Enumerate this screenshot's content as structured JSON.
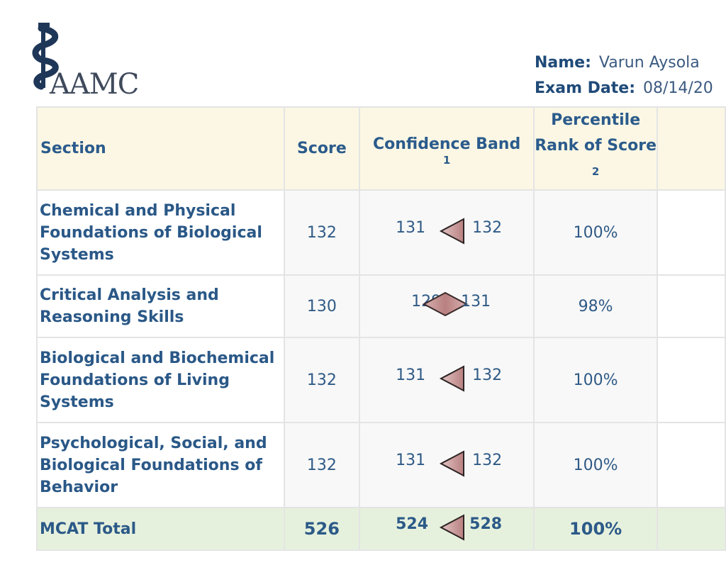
{
  "header": {
    "logo_text": "AAMC",
    "name_label": "Name:",
    "name_value": "Varun Aysola",
    "exam_date_label": "Exam Date:",
    "exam_date_value": "08/14/20"
  },
  "table": {
    "columns": {
      "section": "Section",
      "score": "Score",
      "confidence_band": "Confidence Band",
      "confidence_band_note": "1",
      "percentile": "Percentile Rank of Score",
      "percentile_note": "2"
    },
    "rows": [
      {
        "section": "Chemical and Physical Foundations of Biological Systems",
        "score": "132",
        "band_low": "131",
        "band_high": "132",
        "percentile": "100%",
        "marker": "left-triangle"
      },
      {
        "section": "Critical Analysis and Reasoning Skills",
        "score": "130",
        "band_low": "129",
        "band_high": "131",
        "percentile": "98%",
        "marker": "diamond"
      },
      {
        "section": "Biological and Biochemical Foundations of Living Systems",
        "score": "132",
        "band_low": "131",
        "band_high": "132",
        "percentile": "100%",
        "marker": "left-triangle"
      },
      {
        "section": "Psychological, Social, and Biological Foundations of Behavior",
        "score": "132",
        "band_low": "131",
        "band_high": "132",
        "percentile": "100%",
        "marker": "left-triangle"
      }
    ],
    "total": {
      "section": "MCAT Total",
      "score": "526",
      "band_low": "524",
      "band_high": "528",
      "percentile": "100%",
      "marker": "left-triangle"
    }
  },
  "colors": {
    "header_bg": "#fcf7e4",
    "total_bg": "#e6f1dd",
    "text_blue": "#2b5b8c",
    "marker_fill": "#b98080"
  }
}
